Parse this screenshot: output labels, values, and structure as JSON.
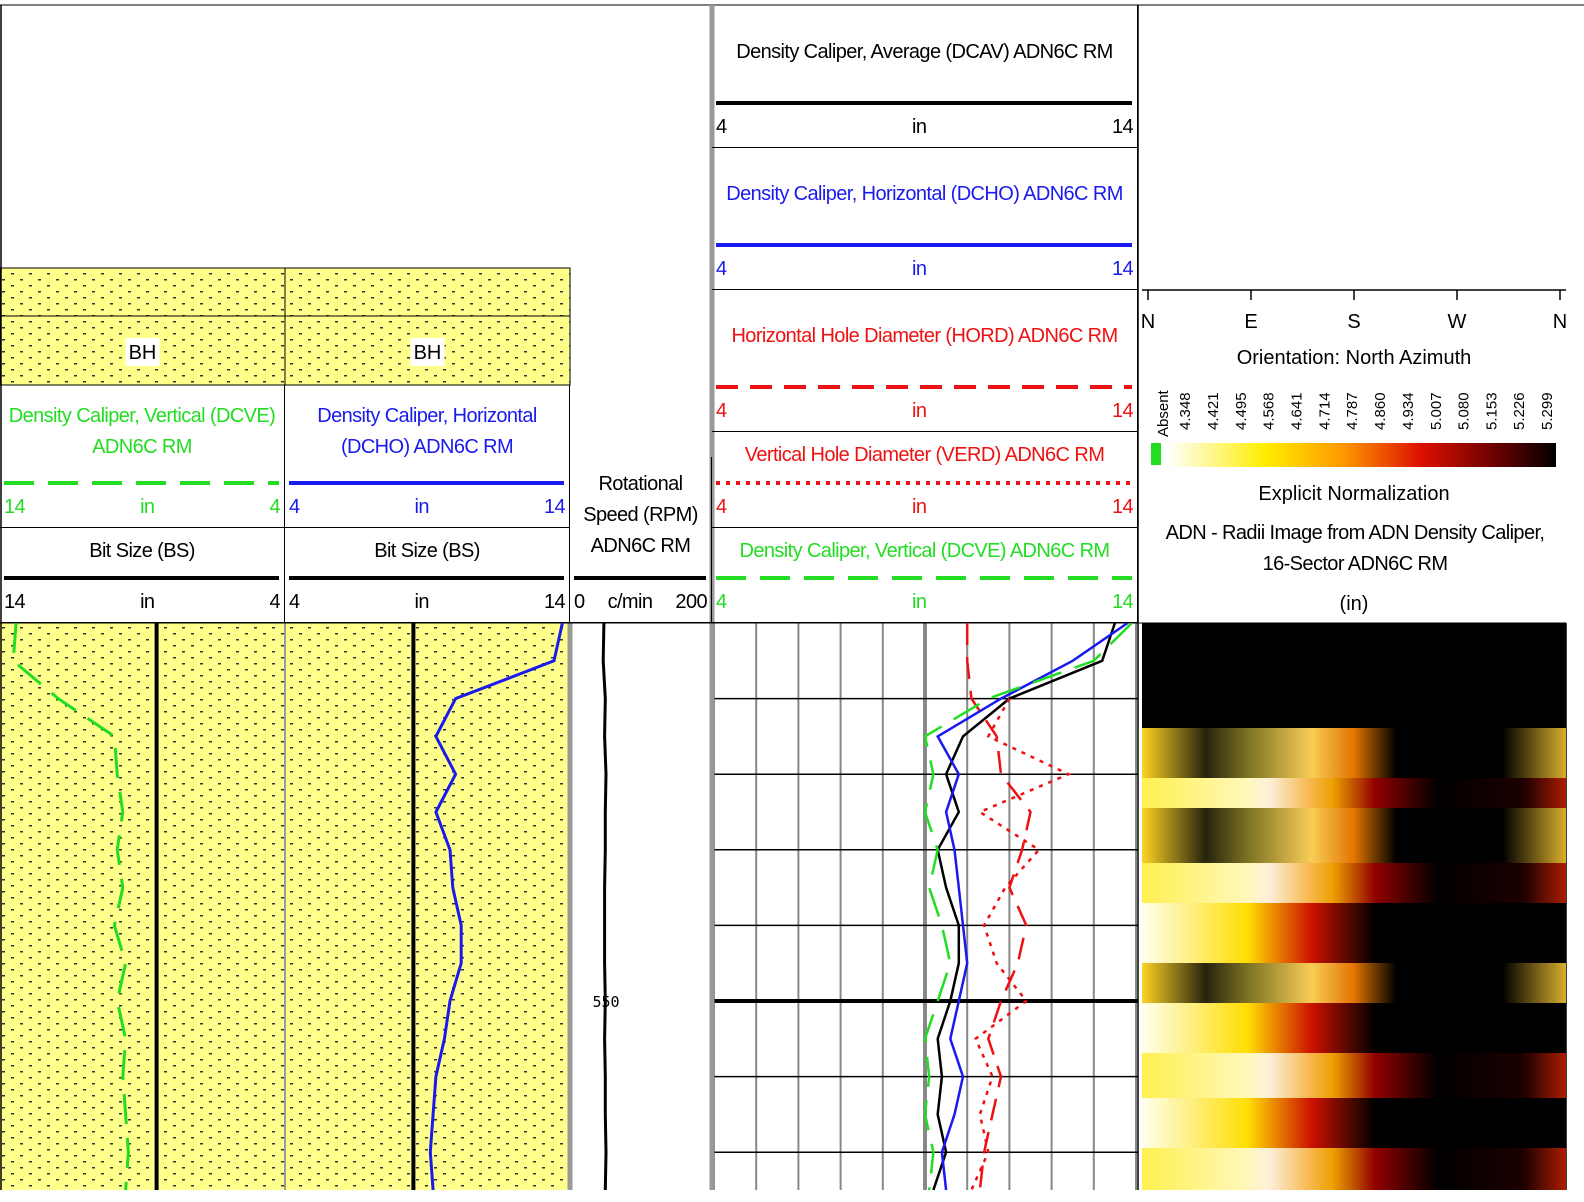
{
  "tracks": [
    {
      "fill_label": "BH",
      "headers": [
        {
          "name": "Density Caliper, Vertical (DCVE) ADN6C RM",
          "color": "#22dd22",
          "dash": "30 14",
          "left": 14,
          "unit": "in",
          "right": 4,
          "values": [
            13.5,
            13.6,
            12.0,
            10.0,
            9.9,
            9.7,
            9.9,
            9.7,
            10.0,
            9.6,
            9.9,
            9.6,
            9.7,
            9.6,
            9.5,
            9.6
          ]
        },
        {
          "name": "Bit Size (BS)",
          "color": "#000000",
          "left": 14,
          "unit": "in",
          "right": 4,
          "values": [
            8.5,
            8.5,
            8.5,
            8.5,
            8.5,
            8.5,
            8.5,
            8.5,
            8.5,
            8.5,
            8.5,
            8.5,
            8.5,
            8.5,
            8.5,
            8.5
          ]
        }
      ]
    },
    {
      "fill_label": "BH",
      "headers": [
        {
          "name": "Density Caliper, Horizontal (DCHO) ADN6C RM",
          "color": "#1a1aee",
          "left": 4,
          "unit": "in",
          "right": 14,
          "values": [
            13.8,
            13.5,
            10.0,
            9.3,
            10.0,
            9.3,
            9.8,
            9.9,
            10.2,
            10.2,
            9.8,
            9.6,
            9.3,
            9.2,
            9.1,
            9.2
          ]
        },
        {
          "name": "Bit Size (BS)",
          "color": "#000000",
          "left": 4,
          "unit": "in",
          "right": 14,
          "values": [
            8.5,
            8.5,
            8.5,
            8.5,
            8.5,
            8.5,
            8.5,
            8.5,
            8.5,
            8.5,
            8.5,
            8.5,
            8.5,
            8.5,
            8.5,
            8.5
          ]
        }
      ]
    },
    {
      "headers": [
        {
          "name": "Rotational Speed (RPM) ADN6C RM",
          "color": "#000000",
          "left": 0,
          "unit": "c/min",
          "right": 200,
          "values": [
            44,
            43,
            46,
            45,
            47,
            46,
            46,
            45,
            45,
            45,
            46,
            45,
            46,
            46,
            47,
            46
          ]
        }
      ]
    },
    {
      "headers": [
        {
          "name": "Density Caliper, Average (DCAV) ADN6C RM",
          "color": "#000000",
          "left": 4,
          "unit": "in",
          "right": 14,
          "values": [
            13.5,
            13.2,
            11.0,
            9.9,
            9.5,
            9.8,
            9.3,
            9.5,
            9.8,
            9.8,
            9.6,
            9.3,
            9.4,
            9.3,
            9.5,
            9.2
          ]
        },
        {
          "name": "Density Caliper, Horizontal (DCHO) ADN6C RM",
          "color": "#1a1aee",
          "left": 4,
          "unit": "in",
          "right": 14,
          "values": [
            13.8,
            12.5,
            10.8,
            9.3,
            9.8,
            9.5,
            9.7,
            9.8,
            9.9,
            10.0,
            9.8,
            9.6,
            9.9,
            9.7,
            9.4,
            9.5
          ]
        },
        {
          "name": "Horizontal Hole Diameter (HORD) ADN6C RM",
          "color": "#ee1111",
          "dash": "22 12",
          "left": 4,
          "unit": "in",
          "right": 14,
          "values": [
            10.0,
            10.0,
            10.1,
            10.7,
            10.8,
            11.5,
            11.3,
            11.0,
            11.4,
            11.2,
            10.8,
            10.5,
            10.8,
            10.6,
            10.4,
            10.3
          ]
        },
        {
          "name": "Vertical Hole Diameter (VERD) ADN6C RM",
          "color": "#ee1111",
          "dash": "4 6",
          "left": 4,
          "unit": "in",
          "right": 14,
          "values": [
            null,
            null,
            11.0,
            10.5,
            12.4,
            10.3,
            11.7,
            10.9,
            10.4,
            10.7,
            11.4,
            10.2,
            10.6,
            10.3,
            10.5,
            10.1
          ]
        },
        {
          "name": "Density Caliper, Vertical (DCVE) ADN6C RM",
          "color": "#22dd22",
          "dash": "30 14",
          "left": 4,
          "unit": "in",
          "right": 14,
          "values": [
            13.9,
            13.0,
            10.5,
            9.0,
            9.2,
            9.0,
            9.3,
            9.1,
            9.4,
            9.6,
            9.3,
            9.0,
            9.1,
            9.0,
            9.2,
            9.1
          ]
        }
      ]
    }
  ],
  "image_track": {
    "compass": [
      "N",
      "E",
      "S",
      "W",
      "N"
    ],
    "orientation": "Orientation: North Azimuth",
    "absent": "Absent",
    "scale": [
      4.348,
      4.421,
      4.495,
      4.568,
      4.641,
      4.714,
      4.787,
      {
        "value": 4.86,
        "label": "4.860"
      },
      4.934,
      5.007,
      {
        "value": 5.08,
        "label": "5.080"
      },
      5.153,
      5.226,
      5.299
    ],
    "normalization": "Explicit Normalization",
    "name": "ADN - Radii Image from ADN Density Caliper, 16-Sector ADN6C RM",
    "unit": "(in)"
  },
  "depth": [
    540,
    541,
    542,
    543,
    544,
    545,
    546,
    547,
    548,
    549,
    550,
    551,
    552,
    553,
    554,
    555
  ],
  "depth_range": [
    540,
    555
  ],
  "depth_grid": [
    542,
    544,
    546,
    548,
    550,
    552,
    554
  ],
  "depth_labels": [
    550
  ]
}
